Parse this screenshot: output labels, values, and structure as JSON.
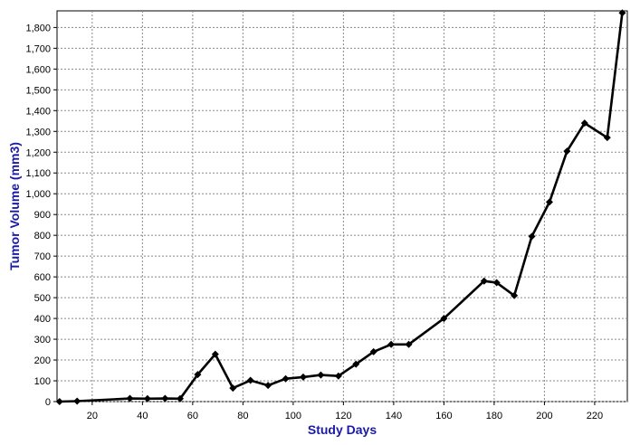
{
  "chart_data": {
    "type": "line",
    "xlabel": "Study Days",
    "ylabel": "Tumor Volume (mm3)",
    "xlim": [
      6,
      233
    ],
    "ylim": [
      0,
      1880
    ],
    "grid": true,
    "x_ticks": [
      "20",
      "40",
      "60",
      "80",
      "100",
      "120",
      "140",
      "160",
      "180",
      "200",
      "220"
    ],
    "y_ticks": [
      "0",
      "100",
      "200",
      "300",
      "400",
      "500",
      "600",
      "700",
      "800",
      "900",
      "1,000",
      "1,100",
      "1,200",
      "1,300",
      "1,400",
      "1,500",
      "1,600",
      "1,700",
      "1,800"
    ],
    "series": [
      {
        "color": "#000000",
        "points": [
          [
            7,
            0
          ],
          [
            14,
            2
          ],
          [
            35,
            15
          ],
          [
            42,
            14
          ],
          [
            49,
            15
          ],
          [
            55,
            14
          ],
          [
            62,
            130
          ],
          [
            69,
            228
          ],
          [
            76,
            65
          ],
          [
            83,
            102
          ],
          [
            90,
            78
          ],
          [
            97,
            110
          ],
          [
            104,
            118
          ],
          [
            111,
            128
          ],
          [
            118,
            123
          ],
          [
            125,
            180
          ],
          [
            132,
            240
          ],
          [
            139,
            275
          ],
          [
            146,
            275
          ],
          [
            160,
            400
          ],
          [
            176,
            580
          ],
          [
            181,
            572
          ],
          [
            188,
            510
          ],
          [
            195,
            795
          ],
          [
            202,
            960
          ],
          [
            209,
            1205
          ],
          [
            216,
            1340
          ],
          [
            225,
            1270
          ],
          [
            231,
            1870
          ]
        ]
      }
    ]
  }
}
